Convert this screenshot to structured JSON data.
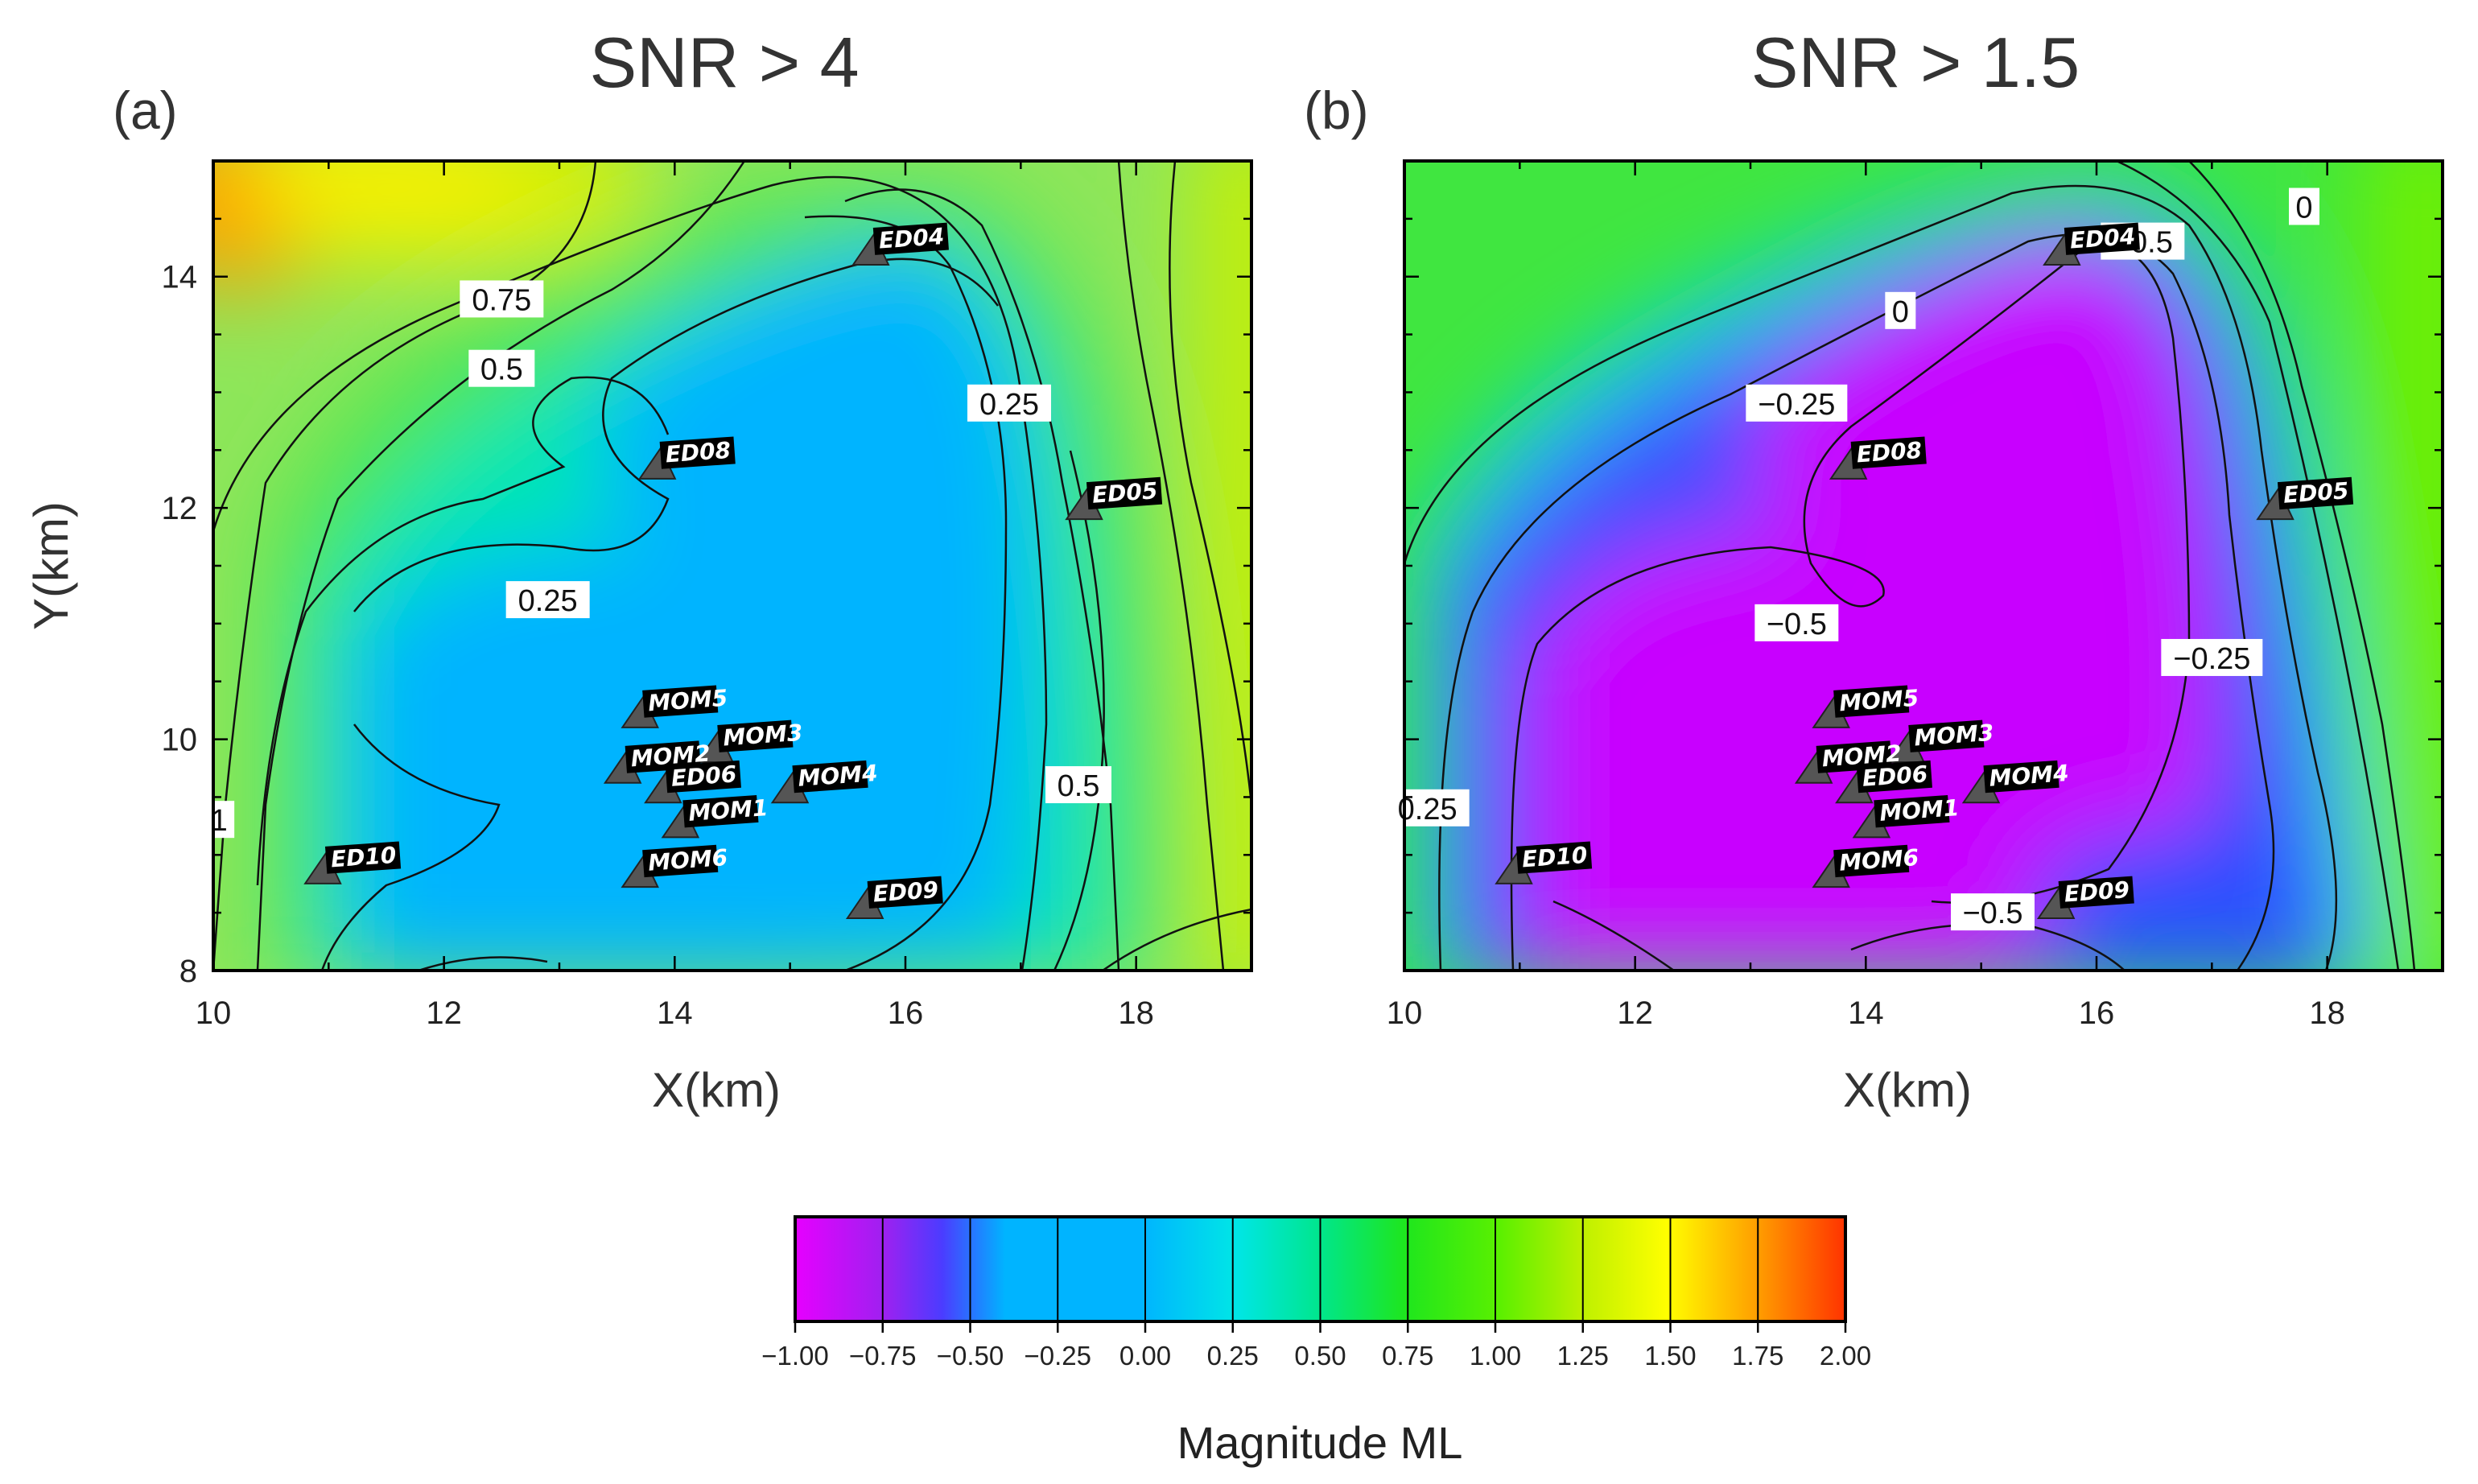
{
  "chart_data": [
    {
      "type": "heatmap",
      "panel_label": "(a)",
      "title": "SNR > 4",
      "xlabel": "X(km)",
      "ylabel": "Y(km)",
      "xlim": [
        10,
        19
      ],
      "ylim": [
        8,
        15
      ],
      "x_ticks": [
        "10",
        "12",
        "14",
        "16",
        "18"
      ],
      "y_ticks": [
        "8",
        "10",
        "12",
        "14"
      ],
      "contour_labels": [
        {
          "text": "0.75",
          "x": 12.5,
          "y": 13.8
        },
        {
          "text": "0.5",
          "x": 12.5,
          "y": 13.2
        },
        {
          "text": "0.25",
          "x": 16.9,
          "y": 12.9
        },
        {
          "text": "0.25",
          "x": 12.9,
          "y": 11.2
        },
        {
          "text": "0.5",
          "x": 17.5,
          "y": 9.6
        },
        {
          "text": "1",
          "x": 10.05,
          "y": 9.3
        }
      ],
      "stations": [
        {
          "name": "ED04",
          "x": 15.7,
          "y": 14.2
        },
        {
          "name": "ED08",
          "x": 13.85,
          "y": 12.35
        },
        {
          "name": "ED05",
          "x": 17.55,
          "y": 12.0
        },
        {
          "name": "MOM5",
          "x": 13.7,
          "y": 10.2
        },
        {
          "name": "MOM3",
          "x": 14.35,
          "y": 9.9
        },
        {
          "name": "MOM2",
          "x": 13.55,
          "y": 9.72
        },
        {
          "name": "ED06",
          "x": 13.9,
          "y": 9.55
        },
        {
          "name": "MOM4",
          "x": 15.0,
          "y": 9.55
        },
        {
          "name": "MOM1",
          "x": 14.05,
          "y": 9.25
        },
        {
          "name": "ED10",
          "x": 10.95,
          "y": 8.85
        },
        {
          "name": "MOM6",
          "x": 13.7,
          "y": 8.82
        },
        {
          "name": "ED09",
          "x": 15.65,
          "y": 8.55
        }
      ]
    },
    {
      "type": "heatmap",
      "panel_label": "(b)",
      "title": "SNR > 1.5",
      "xlabel": "X(km)",
      "ylabel": "",
      "xlim": [
        10,
        19
      ],
      "ylim": [
        8,
        15
      ],
      "x_ticks": [
        "10",
        "12",
        "14",
        "16",
        "18"
      ],
      "y_ticks": [],
      "contour_labels": [
        {
          "text": "0",
          "x": 17.8,
          "y": 14.6
        },
        {
          "text": "−0.5",
          "x": 16.4,
          "y": 14.3
        },
        {
          "text": "0",
          "x": 14.3,
          "y": 13.7
        },
        {
          "text": "−0.25",
          "x": 13.4,
          "y": 12.9
        },
        {
          "text": "−0.5",
          "x": 13.4,
          "y": 11.0
        },
        {
          "text": "−0.25",
          "x": 17.0,
          "y": 10.7
        },
        {
          "text": "0.25",
          "x": 10.2,
          "y": 9.4
        },
        {
          "text": "−0.5",
          "x": 15.1,
          "y": 8.5
        }
      ],
      "stations": [
        {
          "name": "ED04",
          "x": 15.7,
          "y": 14.2
        },
        {
          "name": "ED08",
          "x": 13.85,
          "y": 12.35
        },
        {
          "name": "ED05",
          "x": 17.55,
          "y": 12.0
        },
        {
          "name": "MOM5",
          "x": 13.7,
          "y": 10.2
        },
        {
          "name": "MOM3",
          "x": 14.35,
          "y": 9.9
        },
        {
          "name": "MOM2",
          "x": 13.55,
          "y": 9.72
        },
        {
          "name": "ED06",
          "x": 13.9,
          "y": 9.55
        },
        {
          "name": "MOM4",
          "x": 15.0,
          "y": 9.55
        },
        {
          "name": "MOM1",
          "x": 14.05,
          "y": 9.25
        },
        {
          "name": "ED10",
          "x": 10.95,
          "y": 8.85
        },
        {
          "name": "MOM6",
          "x": 13.7,
          "y": 8.82
        },
        {
          "name": "ED09",
          "x": 15.65,
          "y": 8.55
        }
      ]
    }
  ],
  "colorbar": {
    "label": "Magnitude ML",
    "range": [
      -1.0,
      2.0
    ],
    "ticks": [
      "−1.00",
      "−0.75",
      "−0.50",
      "−0.25",
      "0.00",
      "0.25",
      "0.50",
      "0.75",
      "1.00",
      "1.25",
      "1.50",
      "1.75",
      "2.00"
    ],
    "colors": [
      "#e600ff",
      "#a020f0",
      "#4b3cff",
      "#00aaff",
      "#00b4ff",
      "#00e6e6",
      "#00e68c",
      "#1ee61e",
      "#5af000",
      "#bef000",
      "#ffff00",
      "#ff9900",
      "#ff3300"
    ]
  }
}
